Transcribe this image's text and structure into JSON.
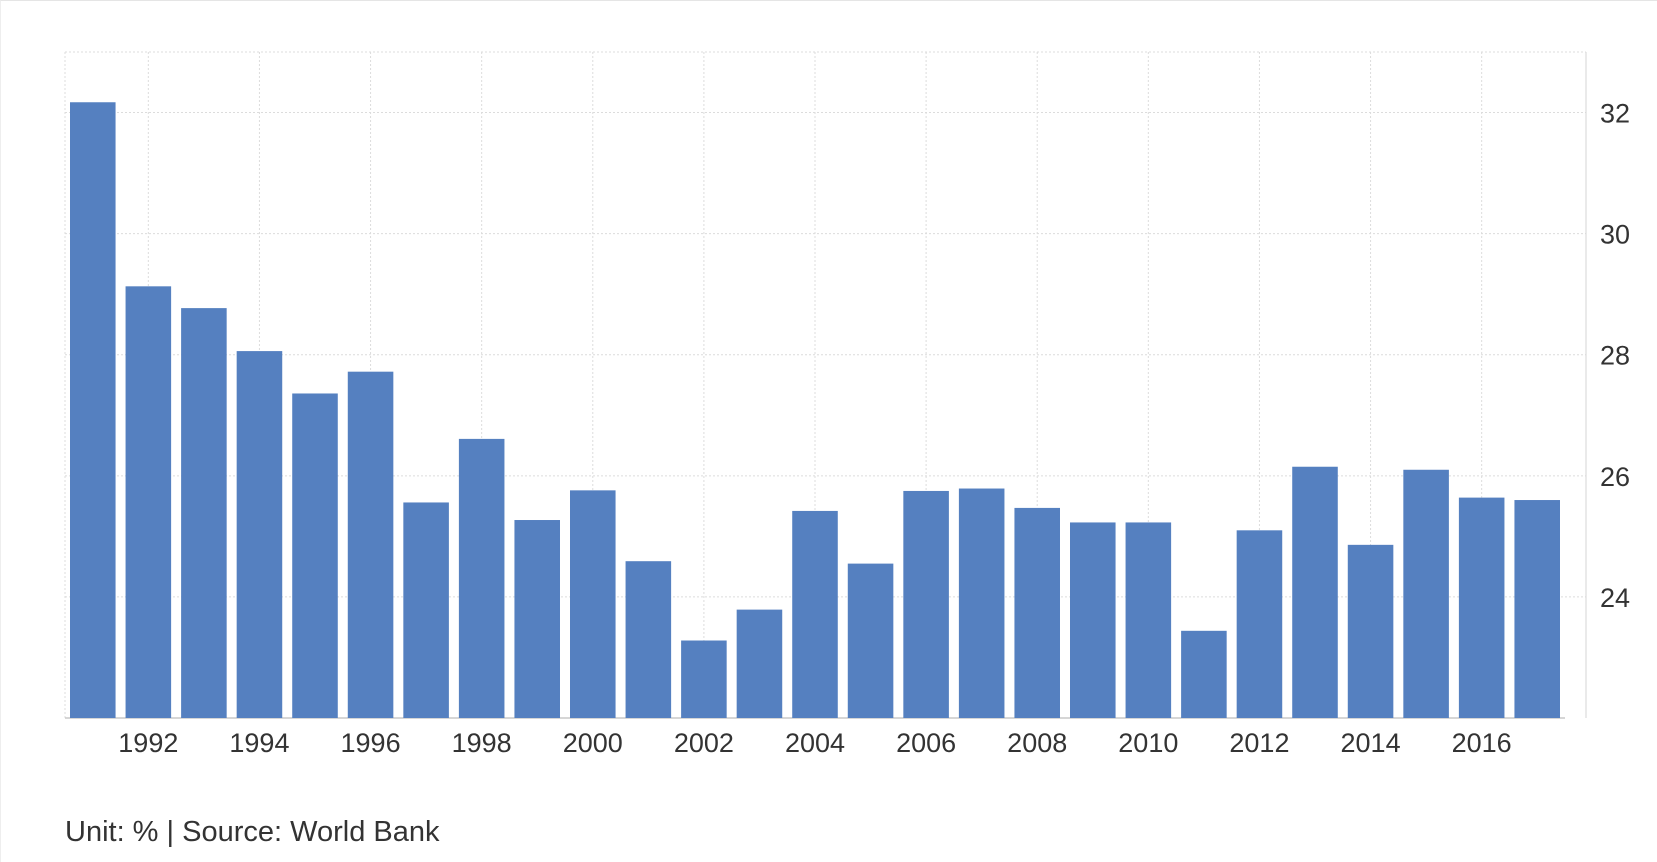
{
  "chart_data": {
    "type": "bar",
    "x": [
      1991,
      1992,
      1993,
      1994,
      1995,
      1996,
      1997,
      1998,
      1999,
      2000,
      2001,
      2002,
      2003,
      2004,
      2005,
      2006,
      2007,
      2008,
      2009,
      2010,
      2011,
      2012,
      2013,
      2014,
      2015,
      2016,
      2017
    ],
    "values": [
      32.17,
      29.13,
      28.77,
      28.06,
      27.36,
      27.72,
      25.56,
      26.61,
      25.27,
      25.76,
      24.59,
      23.28,
      23.79,
      25.42,
      24.55,
      25.75,
      25.79,
      25.47,
      25.23,
      25.23,
      23.44,
      25.1,
      26.15,
      24.86,
      26.1,
      25.64,
      25.6
    ],
    "x_tick_labels": [
      "1992",
      "1994",
      "1996",
      "1998",
      "2000",
      "2002",
      "2004",
      "2006",
      "2008",
      "2010",
      "2012",
      "2014",
      "2016"
    ],
    "y_tick_labels": [
      "24",
      "26",
      "28",
      "30",
      "32"
    ],
    "ylim": [
      22,
      33
    ],
    "y_axis_side": "right",
    "grid": true,
    "bar_color": "#5580c0",
    "title": "",
    "xlabel": "",
    "ylabel": ""
  },
  "footer": {
    "note": "Unit: % | Source: World Bank"
  }
}
